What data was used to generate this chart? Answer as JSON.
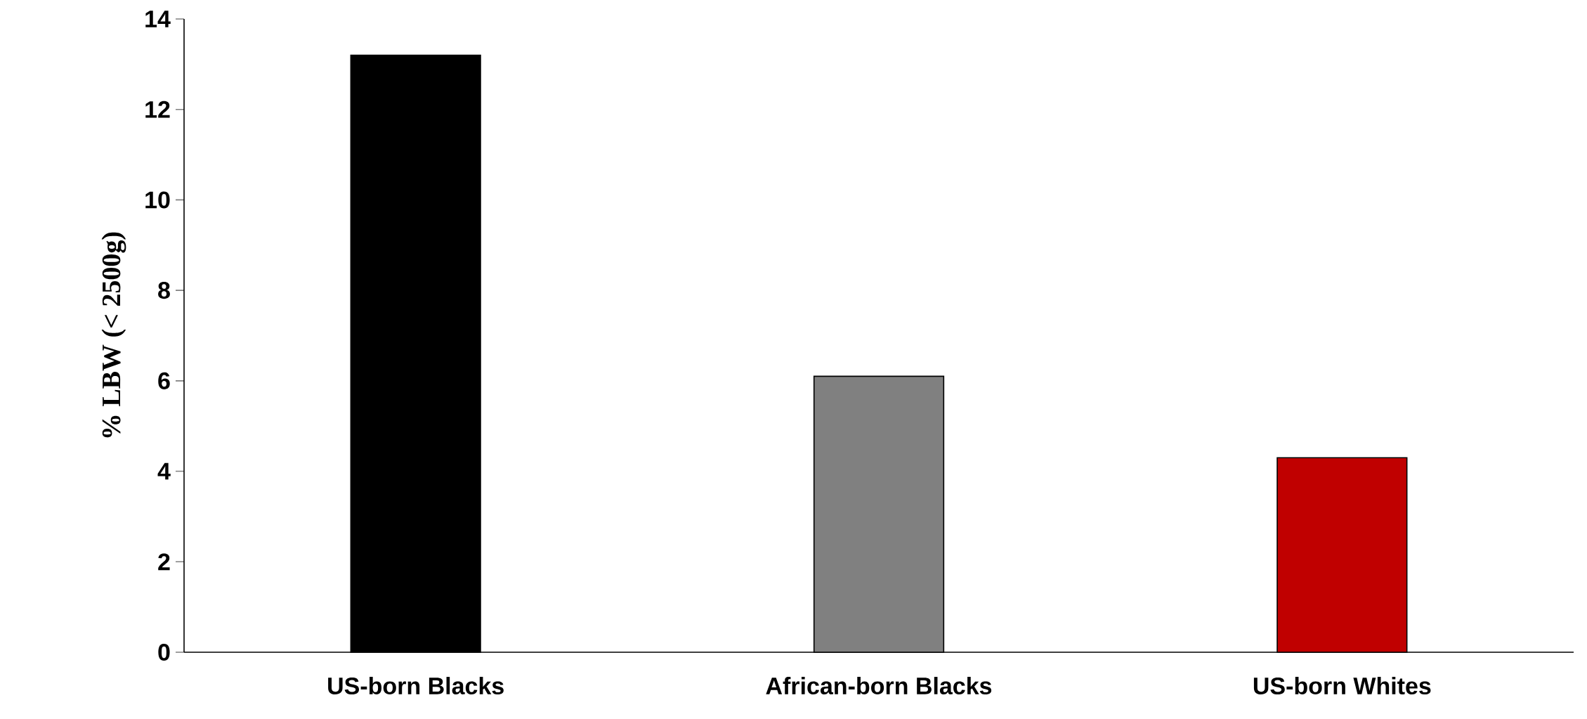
{
  "chart_data": {
    "type": "bar",
    "ylabel": "% LBW (< 2500g)",
    "categories": [
      "US-born Blacks",
      "African-born Blacks",
      "US-born Whites"
    ],
    "values": [
      13.2,
      6.1,
      4.3
    ],
    "colors": [
      "#000000",
      "#808080",
      "#c00000"
    ],
    "ylim": [
      0,
      14
    ],
    "yticks": [
      0,
      2,
      4,
      6,
      8,
      10,
      12,
      14
    ],
    "grid": false
  }
}
